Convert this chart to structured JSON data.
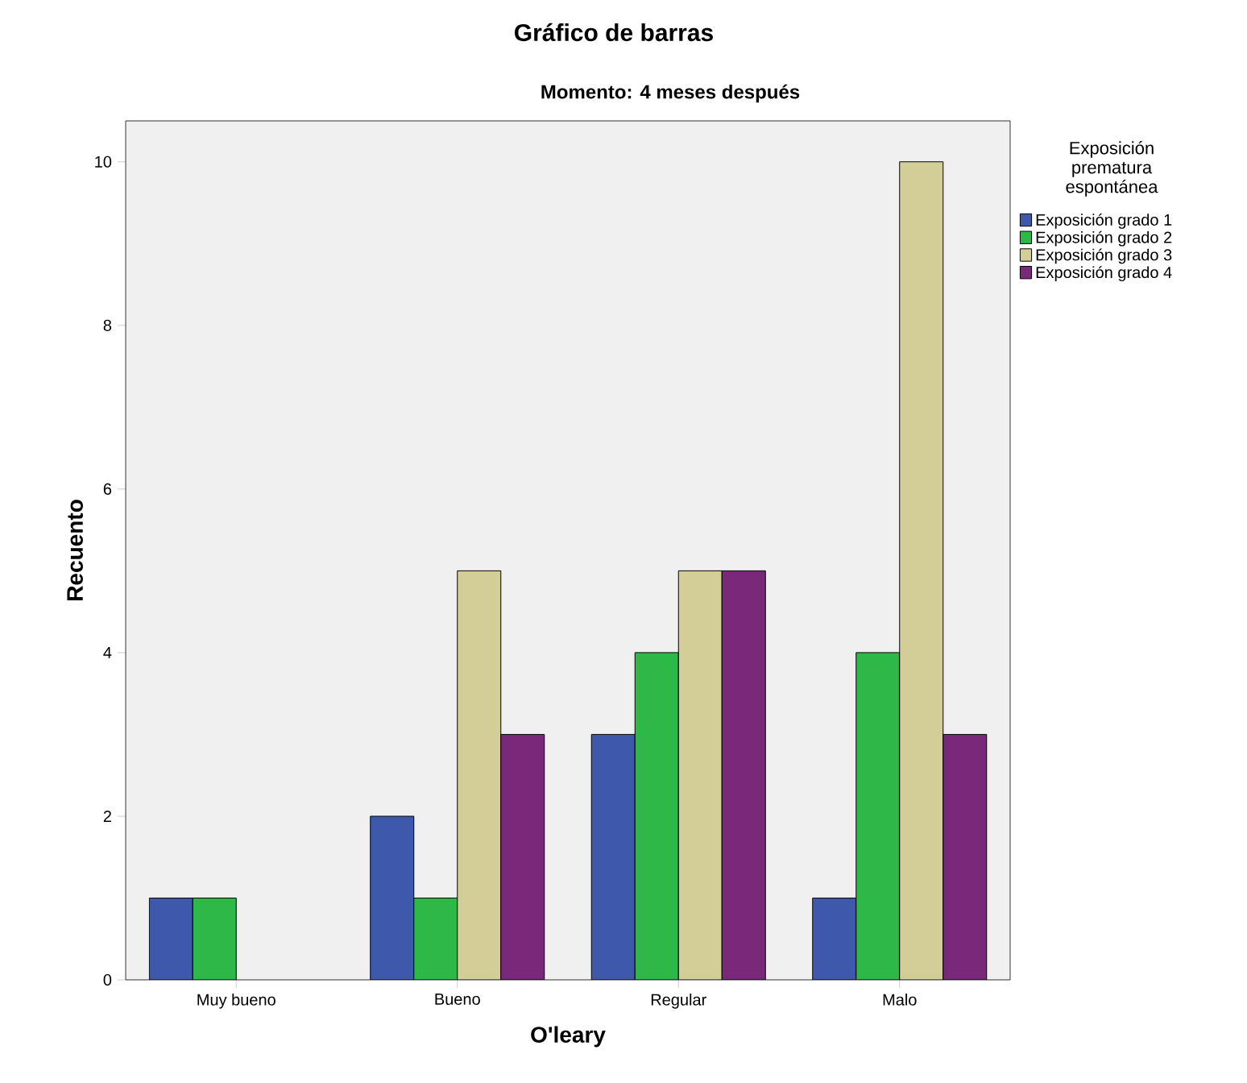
{
  "chart_data": {
    "type": "bar",
    "title": "Gráfico de barras",
    "subtitle": "Momento: 4 meses después",
    "xlabel": "O'leary",
    "ylabel": "Recuento",
    "legend_title": "Exposición prematura espontánea",
    "categories": [
      "Muy bueno",
      "Bueno",
      "Regular",
      "Malo"
    ],
    "series": [
      {
        "name": "Exposición grado 1",
        "color": "#3e58ac",
        "values": [
          1,
          2,
          3,
          1
        ]
      },
      {
        "name": "Exposición grado 2",
        "color": "#2eb848",
        "values": [
          1,
          1,
          4,
          4
        ]
      },
      {
        "name": "Exposición grado 3",
        "color": "#d3ce97",
        "values": [
          null,
          5,
          5,
          10
        ]
      },
      {
        "name": "Exposición grado 4",
        "color": "#7a287a",
        "values": [
          null,
          3,
          5,
          3
        ]
      }
    ],
    "ylim": [
      0,
      10.5
    ],
    "yticks": [
      0,
      2,
      4,
      6,
      8,
      10
    ],
    "legend": "right"
  }
}
